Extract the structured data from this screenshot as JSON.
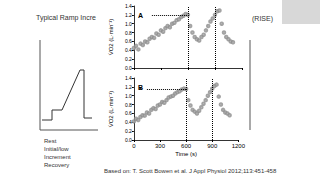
{
  "slide": {
    "heading": "Typical Ramp Incre",
    "heading_right": "(RISE)",
    "schematic_labels": [
      "Rest",
      "Initial/low",
      "Increment",
      "Recovery"
    ],
    "citation": "Based on: T. Scott Bowen et al. J Appl Physiol 2012;113:451-458"
  },
  "chart_data": [
    {
      "type": "scatter",
      "title": "A",
      "y_label": "V̇O2 (L·min⁻¹)",
      "x": [
        0,
        25,
        50,
        75,
        100,
        125,
        150,
        175,
        200,
        225,
        250,
        275,
        300,
        325,
        350,
        375,
        400,
        425,
        450,
        475,
        500,
        525,
        550,
        575,
        600,
        625,
        650,
        675,
        700,
        725,
        750,
        775,
        800,
        825,
        850,
        875,
        900,
        925,
        950,
        975,
        1000,
        1025,
        1050,
        1075,
        1100
      ],
      "values": [
        0.45,
        0.5,
        0.42,
        0.55,
        0.52,
        0.6,
        0.58,
        0.66,
        0.7,
        0.68,
        0.78,
        0.75,
        0.85,
        0.82,
        0.9,
        0.95,
        0.92,
        1.0,
        1.02,
        1.08,
        1.1,
        1.15,
        1.18,
        1.22,
        1.2,
        0.95,
        0.8,
        0.7,
        0.65,
        0.62,
        0.7,
        0.75,
        0.85,
        0.95,
        1.05,
        1.12,
        1.2,
        1.28,
        1.3,
        1.0,
        0.8,
        0.7,
        0.65,
        0.6,
        0.58
      ],
      "color": "#8c8c8c",
      "marker": "circle",
      "xlim": [
        0,
        1200
      ],
      "xticks": [
        0,
        300,
        600,
        900,
        1200
      ],
      "ylim": [
        0,
        1.4
      ],
      "yticks": [
        {
          "value": 0,
          "label": "0.0"
        },
        {
          "value": 0.2,
          "label": "0.2"
        },
        {
          "value": 0.4,
          "label": "0.4"
        },
        {
          "value": 0.6,
          "label": "0.6"
        },
        {
          "value": 0.8,
          "label": "0.8"
        },
        {
          "value": 1,
          "label": "1.0"
        },
        {
          "value": 1.2,
          "label": "1.2"
        },
        {
          "value": 1.4,
          "label": "1.4"
        }
      ],
      "tick_labels": "y",
      "reference_lines": {
        "h": {
          "y": 1.2,
          "x": [
            200,
            600
          ]
        },
        "v": [
          600,
          900
        ]
      }
    },
    {
      "type": "scatter",
      "title": "B",
      "x_label": "Time (s)",
      "y_label": "V̇O2 (L·min⁻¹)",
      "x": [
        0,
        25,
        50,
        75,
        100,
        125,
        150,
        175,
        200,
        225,
        250,
        275,
        300,
        325,
        350,
        375,
        400,
        425,
        450,
        475,
        500,
        525,
        550,
        575,
        600,
        625,
        650,
        675,
        700,
        725,
        750,
        775,
        800,
        825,
        850,
        875,
        900,
        925,
        950,
        975,
        1000,
        1025,
        1050,
        1075,
        1100
      ],
      "values": [
        0.42,
        0.48,
        0.45,
        0.52,
        0.56,
        0.55,
        0.62,
        0.6,
        0.68,
        0.72,
        0.7,
        0.78,
        0.8,
        0.86,
        0.84,
        0.9,
        0.96,
        0.98,
        1.0,
        1.05,
        1.08,
        1.1,
        1.14,
        1.16,
        1.15,
        0.9,
        0.78,
        0.68,
        0.64,
        0.6,
        0.66,
        0.74,
        0.82,
        0.9,
        1.0,
        1.08,
        1.16,
        1.22,
        1.25,
        0.98,
        0.8,
        0.68,
        0.62,
        0.6,
        0.56
      ],
      "color": "#8c8c8c",
      "marker": "circle",
      "xlim": [
        0,
        1200
      ],
      "xticks": [
        0,
        300,
        600,
        900,
        1200
      ],
      "ylim": [
        0,
        1.4
      ],
      "yticks": [
        {
          "value": 0,
          "label": "0.0"
        },
        {
          "value": 0.2,
          "label": "0.2"
        },
        {
          "value": 0.4,
          "label": "0.4"
        },
        {
          "value": 0.6,
          "label": "0.6"
        },
        {
          "value": 0.8,
          "label": "0.8"
        },
        {
          "value": 1,
          "label": "1.0"
        },
        {
          "value": 1.2,
          "label": "1.2"
        },
        {
          "value": 1.4,
          "label": "1.4"
        }
      ],
      "reference_lines": {
        "h": {
          "y": 1.15,
          "x": [
            150,
            600
          ]
        },
        "v": [
          600,
          900
        ]
      },
      "annotation": {
        "text": "*",
        "x": 150,
        "y": 1.15
      }
    }
  ]
}
